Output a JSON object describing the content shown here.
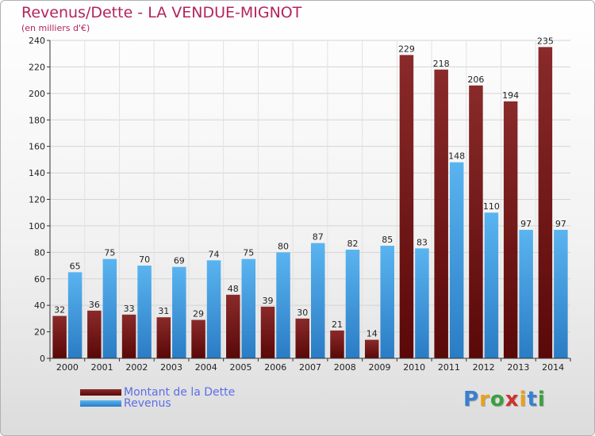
{
  "chart_data": {
    "type": "bar",
    "title": "Revenus/Dette - LA VENDUE-MIGNOT",
    "subtitle": "(en milliers d'€)",
    "categories": [
      "2000",
      "2001",
      "2002",
      "2003",
      "2004",
      "2005",
      "2006",
      "2007",
      "2008",
      "2009",
      "2010",
      "2011",
      "2012",
      "2013",
      "2014"
    ],
    "series": [
      {
        "name": "Montant de la Dette",
        "color": "#7a1a1a",
        "values": [
          32,
          36,
          33,
          31,
          29,
          48,
          39,
          30,
          21,
          14,
          229,
          218,
          206,
          194,
          235
        ]
      },
      {
        "name": "Revenus",
        "color": "#4aa6e8",
        "values": [
          65,
          75,
          70,
          69,
          74,
          75,
          80,
          87,
          82,
          85,
          83,
          148,
          110,
          97,
          97
        ]
      }
    ],
    "ylim": [
      0,
      240
    ],
    "yticks": [
      0,
      20,
      40,
      60,
      80,
      100,
      120,
      140,
      160,
      180,
      200,
      220,
      240
    ],
    "grid": true,
    "legend_position": "bottom-left"
  },
  "logo": {
    "letters": [
      "P",
      "r",
      "o",
      "x",
      "i",
      "t",
      "i"
    ],
    "colors": [
      "#3a7fd0",
      "#e8a020",
      "#3aa040",
      "#d03030",
      "#e8a020",
      "#3a7fd0",
      "#3aa040"
    ]
  }
}
